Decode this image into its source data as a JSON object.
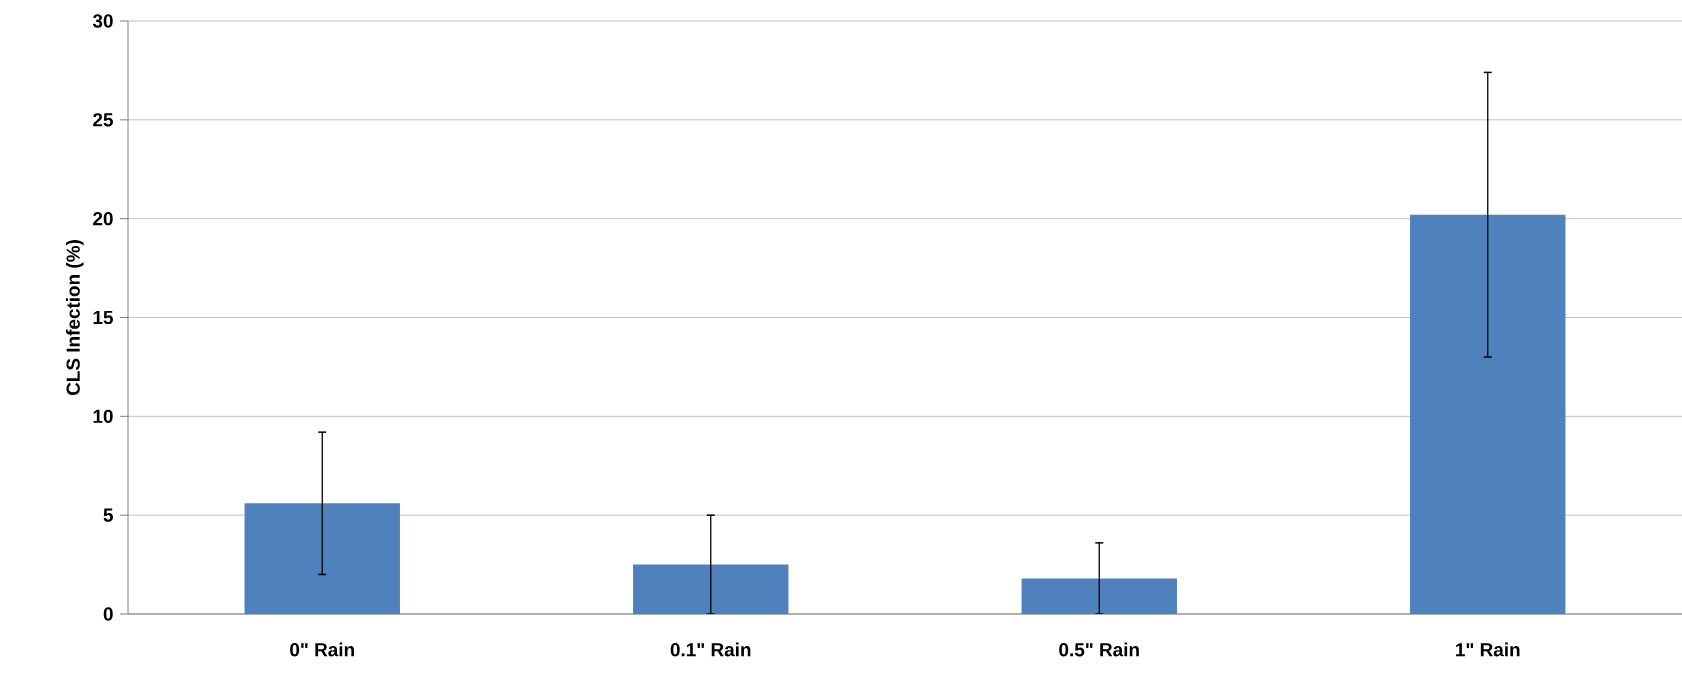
{
  "chart_data": {
    "type": "bar",
    "ylabel": "CLS Infection (%)",
    "categories": [
      "0\" Rain",
      "0.1\" Rain",
      "0.5\" Rain",
      "1\" Rain"
    ],
    "values": [
      5.6,
      2.5,
      1.8,
      20.2
    ],
    "errors": [
      3.6,
      2.5,
      1.8,
      7.2
    ],
    "color": "#4f81bd",
    "ylim": [
      0,
      30
    ],
    "yticks": [
      0,
      5,
      10,
      15,
      20,
      25,
      30
    ],
    "grid": "y"
  }
}
